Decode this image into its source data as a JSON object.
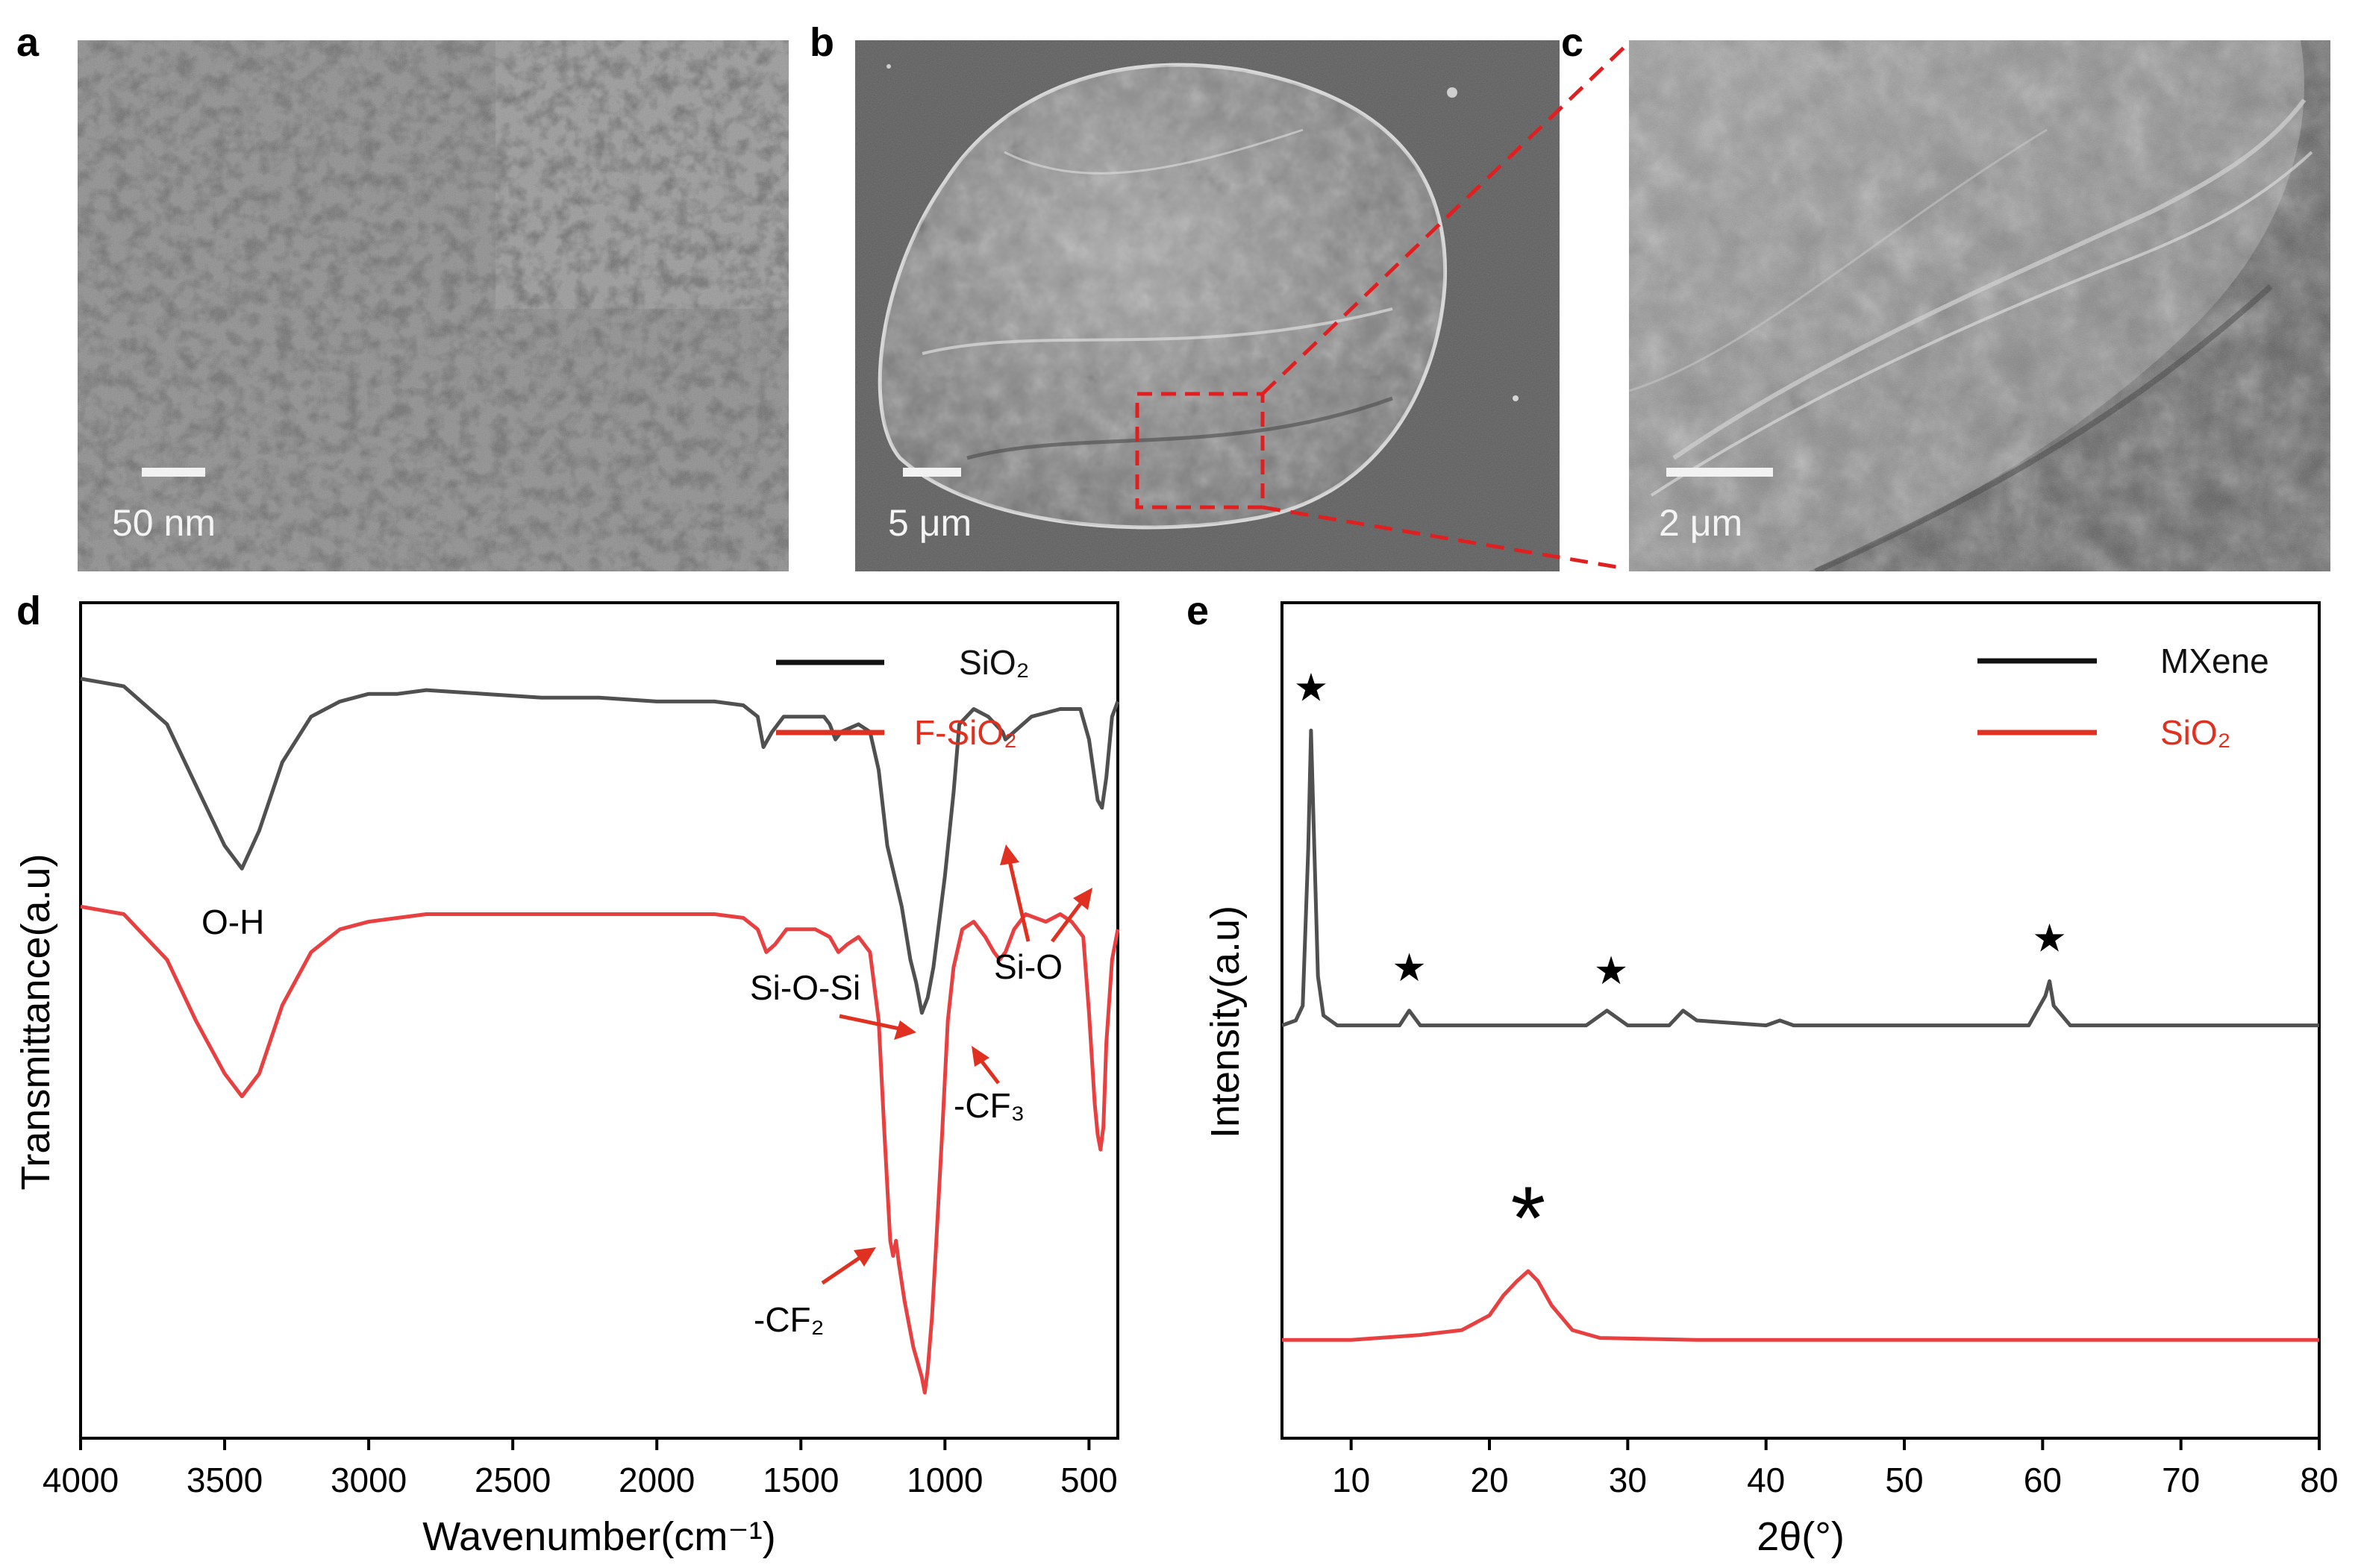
{
  "figure": {
    "panel_labels": {
      "a": "a",
      "b": "b",
      "c": "c",
      "d": "d",
      "e": "e"
    },
    "micrographs": {
      "a": {
        "scale_label": "50 nm",
        "kind": "TEM"
      },
      "b": {
        "scale_label": "5 μm",
        "kind": "SEM"
      },
      "c": {
        "scale_label": "2 μm",
        "kind": "SEM"
      }
    }
  },
  "chart_data": [
    {
      "panel": "d",
      "type": "line",
      "xlabel": "Wavenumber(cm⁻¹)",
      "ylabel": "Transmittance(a.u)",
      "xlim": [
        4000,
        400
      ],
      "x_reversed": true,
      "x_ticks": [
        4000,
        3500,
        3000,
        2500,
        2000,
        1500,
        1000,
        500
      ],
      "y_ticks_shown": false,
      "legend": {
        "placement": "top-right",
        "entries": [
          "SiO₂",
          "F-SiO₂"
        ]
      },
      "series": [
        {
          "name": "SiO₂",
          "color": "#505050",
          "points": [
            [
              4000,
              100
            ],
            [
              3850,
              99
            ],
            [
              3700,
              94
            ],
            [
              3600,
              86
            ],
            [
              3500,
              78
            ],
            [
              3440,
              75
            ],
            [
              3380,
              80
            ],
            [
              3300,
              89
            ],
            [
              3200,
              95
            ],
            [
              3100,
              97
            ],
            [
              3000,
              98
            ],
            [
              2900,
              98
            ],
            [
              2800,
              98.5
            ],
            [
              2600,
              98
            ],
            [
              2400,
              97.5
            ],
            [
              2200,
              97.5
            ],
            [
              2000,
              97
            ],
            [
              1900,
              97
            ],
            [
              1800,
              97
            ],
            [
              1700,
              96.5
            ],
            [
              1650,
              95
            ],
            [
              1630,
              91
            ],
            [
              1600,
              93
            ],
            [
              1560,
              95
            ],
            [
              1500,
              95
            ],
            [
              1420,
              95
            ],
            [
              1400,
              94
            ],
            [
              1380,
              92
            ],
            [
              1360,
              93
            ],
            [
              1300,
              94
            ],
            [
              1260,
              93
            ],
            [
              1230,
              88
            ],
            [
              1200,
              78
            ],
            [
              1150,
              70
            ],
            [
              1120,
              63
            ],
            [
              1100,
              60
            ],
            [
              1080,
              56
            ],
            [
              1060,
              58
            ],
            [
              1040,
              62
            ],
            [
              1000,
              74
            ],
            [
              970,
              85
            ],
            [
              950,
              94
            ],
            [
              900,
              96
            ],
            [
              850,
              95
            ],
            [
              800,
              93
            ],
            [
              790,
              92
            ],
            [
              760,
              93
            ],
            [
              700,
              95
            ],
            [
              600,
              96
            ],
            [
              530,
              96
            ],
            [
              500,
              92
            ],
            [
              470,
              84
            ],
            [
              455,
              83
            ],
            [
              440,
              87
            ],
            [
              420,
              95
            ],
            [
              400,
              97
            ]
          ]
        },
        {
          "name": "F-SiO₂",
          "color": "#e84040",
          "points": [
            [
              4000,
              70
            ],
            [
              3850,
              69
            ],
            [
              3700,
              63
            ],
            [
              3600,
              55
            ],
            [
              3500,
              48
            ],
            [
              3440,
              45
            ],
            [
              3380,
              48
            ],
            [
              3300,
              57
            ],
            [
              3200,
              64
            ],
            [
              3100,
              67
            ],
            [
              3000,
              68
            ],
            [
              2900,
              68.5
            ],
            [
              2800,
              69
            ],
            [
              2600,
              69
            ],
            [
              2400,
              69
            ],
            [
              2200,
              69
            ],
            [
              2000,
              69
            ],
            [
              1900,
              69
            ],
            [
              1800,
              69
            ],
            [
              1700,
              68.5
            ],
            [
              1650,
              67
            ],
            [
              1620,
              64
            ],
            [
              1590,
              65
            ],
            [
              1550,
              67
            ],
            [
              1450,
              67
            ],
            [
              1400,
              66
            ],
            [
              1370,
              64
            ],
            [
              1340,
              65
            ],
            [
              1300,
              66
            ],
            [
              1260,
              64
            ],
            [
              1230,
              55
            ],
            [
              1210,
              40
            ],
            [
              1190,
              26
            ],
            [
              1180,
              24
            ],
            [
              1170,
              26
            ],
            [
              1160,
              23
            ],
            [
              1140,
              18
            ],
            [
              1110,
              12
            ],
            [
              1095,
              10
            ],
            [
              1080,
              8
            ],
            [
              1070,
              6
            ],
            [
              1060,
              9
            ],
            [
              1045,
              16
            ],
            [
              1030,
              26
            ],
            [
              1010,
              40
            ],
            [
              990,
              55
            ],
            [
              970,
              62
            ],
            [
              940,
              67
            ],
            [
              900,
              68
            ],
            [
              860,
              66
            ],
            [
              830,
              64
            ],
            [
              810,
              63
            ],
            [
              790,
              64
            ],
            [
              760,
              67
            ],
            [
              720,
              69
            ],
            [
              650,
              68
            ],
            [
              600,
              69
            ],
            [
              560,
              68
            ],
            [
              520,
              66
            ],
            [
              500,
              56
            ],
            [
              480,
              44
            ],
            [
              470,
              40
            ],
            [
              460,
              38
            ],
            [
              450,
              41
            ],
            [
              440,
              52
            ],
            [
              420,
              63
            ],
            [
              400,
              67
            ]
          ]
        }
      ],
      "annotations": [
        {
          "text": "O-H",
          "arrow": false
        },
        {
          "text": "Si-O-Si",
          "arrow": true,
          "color": "#e03020"
        },
        {
          "text": "Si-O",
          "arrow": true,
          "color": "#e03020"
        },
        {
          "text": "-CF₃",
          "arrow": true,
          "color": "#e03020"
        },
        {
          "text": "-CF₂",
          "arrow": true,
          "color": "#e03020"
        }
      ]
    },
    {
      "panel": "e",
      "type": "line",
      "xlabel": "2θ(°)",
      "ylabel": "Intensity(a.u)",
      "xlim": [
        5,
        80
      ],
      "x_ticks": [
        10,
        20,
        30,
        40,
        50,
        60,
        70,
        80
      ],
      "y_ticks_shown": false,
      "legend": {
        "placement": "top-right",
        "entries": [
          "MXene",
          "SiO₂"
        ]
      },
      "series": [
        {
          "name": "MXene",
          "color": "#505050",
          "points": [
            [
              5,
              42
            ],
            [
              6,
              42.5
            ],
            [
              6.5,
              44
            ],
            [
              6.9,
              60
            ],
            [
              7.1,
              72
            ],
            [
              7.3,
              62
            ],
            [
              7.6,
              47
            ],
            [
              8,
              43
            ],
            [
              9,
              42
            ],
            [
              12,
              42
            ],
            [
              13.5,
              42
            ],
            [
              14.2,
              43.5
            ],
            [
              15,
              42
            ],
            [
              20,
              42
            ],
            [
              27,
              42
            ],
            [
              28.5,
              43.5
            ],
            [
              30,
              42
            ],
            [
              33,
              42
            ],
            [
              34,
              43.5
            ],
            [
              35,
              42.5
            ],
            [
              40,
              42
            ],
            [
              41,
              42.5
            ],
            [
              42,
              42
            ],
            [
              50,
              42
            ],
            [
              59,
              42
            ],
            [
              60.2,
              45
            ],
            [
              60.5,
              46.5
            ],
            [
              60.8,
              44
            ],
            [
              62,
              42
            ],
            [
              70,
              42
            ],
            [
              80,
              42
            ]
          ]
        },
        {
          "name": "SiO₂",
          "color": "#e84040",
          "points": [
            [
              5,
              10
            ],
            [
              10,
              10
            ],
            [
              15,
              10.5
            ],
            [
              18,
              11
            ],
            [
              20,
              12.5
            ],
            [
              21,
              14.5
            ],
            [
              22,
              16
            ],
            [
              22.8,
              17
            ],
            [
              23.5,
              16
            ],
            [
              24.5,
              13.5
            ],
            [
              26,
              11
            ],
            [
              28,
              10.2
            ],
            [
              35,
              10
            ],
            [
              50,
              10
            ],
            [
              60,
              10
            ],
            [
              70,
              10
            ],
            [
              80,
              10
            ]
          ]
        }
      ],
      "markers": [
        {
          "symbol": "★",
          "x": 7.1,
          "series": "MXene"
        },
        {
          "symbol": "★",
          "x": 14.2,
          "series": "MXene"
        },
        {
          "symbol": "★",
          "x": 28.8,
          "series": "MXene"
        },
        {
          "symbol": "★",
          "x": 60.5,
          "series": "MXene"
        },
        {
          "symbol": "*",
          "x": 22.8,
          "series": "SiO₂"
        }
      ]
    }
  ],
  "colors": {
    "black_series": "#505050",
    "red_series": "#e84040",
    "arrow_red": "#e03020",
    "legend_red": "#e03020"
  }
}
